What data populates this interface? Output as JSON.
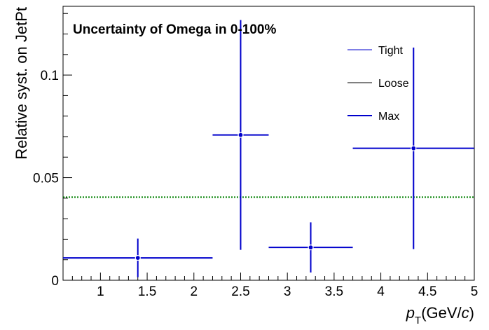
{
  "chart_data": {
    "type": "scatter",
    "title": "Uncertainty of Omega in 0-100%",
    "ylabel": "Relative syst. on JetPt",
    "xlabel": {
      "symbol": "p",
      "subscript": "T",
      "unit_prefix": "(GeV/",
      "unit_italic": "c",
      "unit_suffix": ")"
    },
    "xlim": [
      0.6,
      5.0
    ],
    "ylim": [
      0,
      0.1335
    ],
    "x_ticks": [
      {
        "value": 1,
        "label": "1"
      },
      {
        "value": 1.5,
        "label": "1.5"
      },
      {
        "value": 2,
        "label": "2"
      },
      {
        "value": 2.5,
        "label": "2.5"
      },
      {
        "value": 3,
        "label": "3"
      },
      {
        "value": 3.5,
        "label": "3.5"
      },
      {
        "value": 4,
        "label": "4"
      },
      {
        "value": 4.5,
        "label": "4.5"
      },
      {
        "value": 5,
        "label": "5"
      }
    ],
    "y_ticks": [
      {
        "value": 0,
        "label": "0"
      },
      {
        "value": 0.05,
        "label": "0.05"
      },
      {
        "value": 0.1,
        "label": "0.1"
      }
    ],
    "grid": false,
    "legend_position": "top-right",
    "legend": [
      {
        "name": "Tight",
        "color": "#0000cc",
        "style": "thin"
      },
      {
        "name": "Loose",
        "color": "#000000",
        "style": "thin"
      },
      {
        "name": "Max",
        "color": "#0000cc",
        "style": "thick"
      }
    ],
    "series": [
      {
        "name": "Max",
        "color": "#0000cc",
        "points": [
          {
            "x": 1.4,
            "x_low": 0.6,
            "x_high": 2.2,
            "y": 0.0109,
            "y_low": 0.0015,
            "y_high": 0.0203
          },
          {
            "x": 2.5,
            "x_low": 2.2,
            "x_high": 2.8,
            "y": 0.0708,
            "y_low": 0.0148,
            "y_high": 0.1268
          },
          {
            "x": 3.25,
            "x_low": 2.8,
            "x_high": 3.7,
            "y": 0.016,
            "y_low": 0.0038,
            "y_high": 0.0282
          },
          {
            "x": 4.35,
            "x_low": 3.7,
            "x_high": 5.0,
            "y": 0.0643,
            "y_low": 0.0152,
            "y_high": 0.1134
          }
        ]
      }
    ],
    "reference_line": {
      "y": 0.0405,
      "color": "#008000",
      "style": "dotted"
    }
  }
}
